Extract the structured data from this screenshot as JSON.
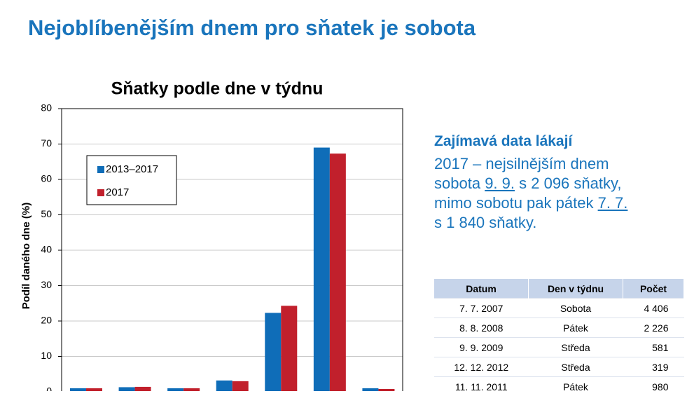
{
  "header": {
    "title": "Nejoblíbenějším dnem pro sňatek je sobota"
  },
  "chart_data": {
    "type": "bar",
    "title": "Sňatky podle dne v týdnu",
    "y_label": "Podíl daného dne (%)",
    "categories": [
      null,
      null,
      null,
      null,
      null,
      null,
      null
    ],
    "series": [
      {
        "name": "2013–2017",
        "color": "#0f6db8",
        "values": [
          1,
          1.3,
          1,
          3.2,
          22.3,
          69,
          1
        ]
      },
      {
        "name": "2017",
        "color": "#c1202c",
        "values": [
          1,
          1.4,
          1,
          3,
          24.3,
          67.3,
          0.8
        ]
      }
    ],
    "ylim": [
      0,
      80
    ],
    "yticks": [
      0,
      10,
      20,
      30,
      40,
      50,
      60,
      70,
      80
    ],
    "grid": true,
    "legend": "upper-left"
  },
  "highlight": {
    "title": "Zajímavá data lákají",
    "text": [
      "2017 – nejsilnějším dnem",
      "sobota",
      "9. 9.",
      "s 2 096 sňatky,",
      "mimo sobotu pak pátek",
      "7. 7.",
      "s 1 840 sňatky."
    ]
  },
  "table": {
    "columns": [
      "Datum",
      "Den v týdnu",
      "Počet"
    ],
    "rows": [
      [
        "7. 7. 2007",
        "Sobota",
        "4 406"
      ],
      [
        "8. 8. 2008",
        "Pátek",
        "2 226"
      ],
      [
        "9. 9. 2009",
        "Středa",
        "581"
      ],
      [
        "12. 12. 2012",
        "Středa",
        "319"
      ],
      [
        "11. 11. 2011",
        "Pátek",
        "980"
      ]
    ]
  }
}
